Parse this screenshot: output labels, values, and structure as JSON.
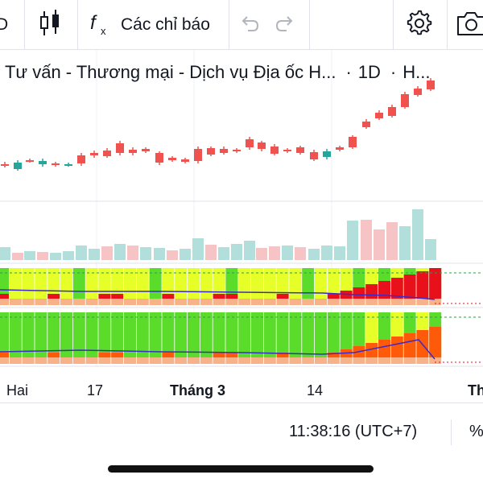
{
  "toolbar": {
    "interval_label": "D",
    "indicators_label": "Các chỉ báo",
    "icons": [
      "candles-icon",
      "function-icon",
      "undo-icon",
      "redo-icon",
      "settings-icon",
      "camera-icon"
    ]
  },
  "legend": {
    "title": "n Tư vấn - Thương mại - Dịch vụ Địa ốc H...",
    "interval": "1D",
    "exchange": "H..."
  },
  "chart_data": {
    "type": "candlestick",
    "x_tick_labels": [
      "Hai",
      "17",
      "Tháng 3",
      "14",
      "Th"
    ],
    "colors": {
      "up": "#26a69a",
      "down": "#ef5350",
      "volume_up": "#b2dfdb",
      "volume_down": "#f7c4c5",
      "panel_lime": "#e6ff29",
      "panel_green": "#5bdc2a",
      "panel_red": "#e8101a",
      "panel_orange": "#ff5a0a",
      "panel_peach": "#f7b28a",
      "panel_line": "#3b2cc9"
    }
  },
  "status": {
    "clock": "11:38:16 (UTC+7)",
    "percent_label": "%"
  }
}
